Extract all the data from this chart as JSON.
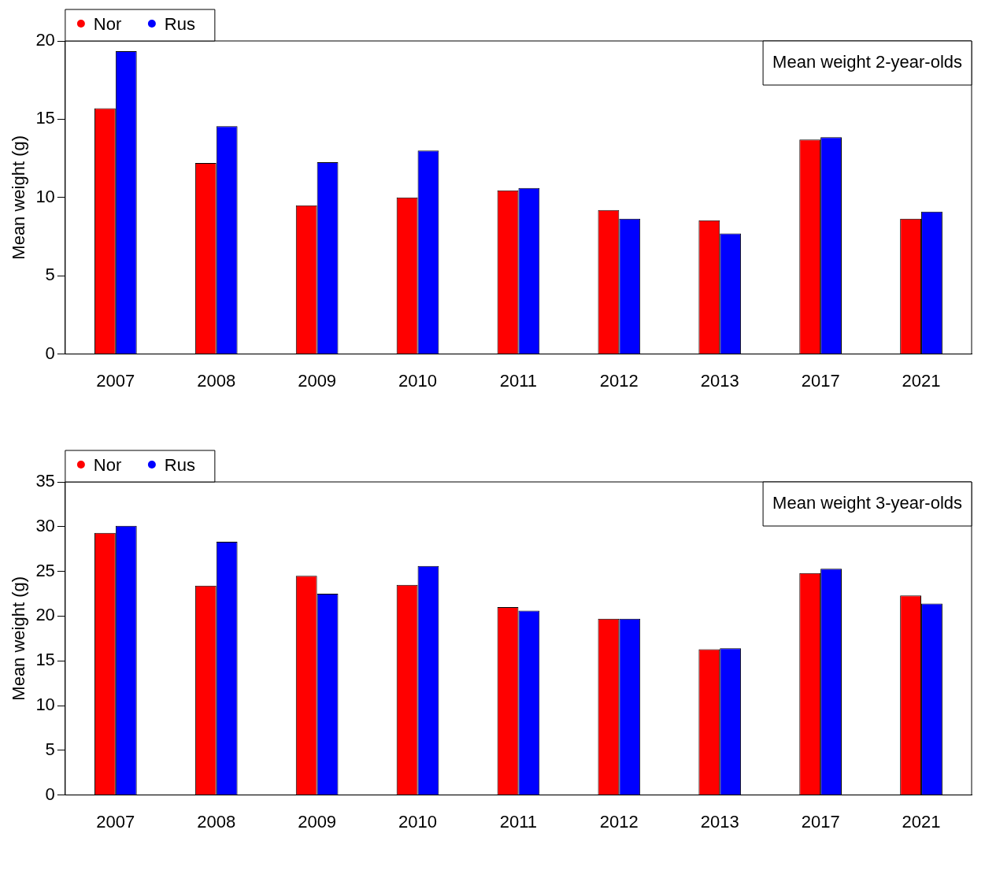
{
  "chart_data": [
    {
      "type": "bar",
      "ylabel": "Mean weight (g)",
      "annotations": [
        "Mean weight 2-year-olds"
      ],
      "categories": [
        "2007",
        "2008",
        "2009",
        "2010",
        "2011",
        "2012",
        "2013",
        "2017",
        "2021"
      ],
      "series": [
        {
          "name": "Nor",
          "color": "#ff0000",
          "values": [
            15.7,
            12.2,
            9.5,
            10.0,
            10.45,
            9.2,
            8.55,
            13.7,
            8.65
          ]
        },
        {
          "name": "Rus",
          "color": "#0000ff",
          "values": [
            19.35,
            14.55,
            12.25,
            13.0,
            10.6,
            8.65,
            7.7,
            13.85,
            9.1
          ]
        }
      ],
      "ylim": [
        0,
        20
      ],
      "yticks": [
        0,
        5,
        10,
        15,
        20
      ],
      "grid": false,
      "legend": "top left"
    },
    {
      "type": "bar",
      "ylabel": "Mean weight (g)",
      "annotations": [
        "Mean weight 3-year-olds"
      ],
      "categories": [
        "2007",
        "2008",
        "2009",
        "2010",
        "2011",
        "2012",
        "2013",
        "2017",
        "2021"
      ],
      "series": [
        {
          "name": "Nor",
          "color": "#ff0000",
          "values": [
            29.3,
            23.4,
            24.5,
            23.5,
            21.0,
            19.7,
            16.3,
            24.8,
            22.3
          ]
        },
        {
          "name": "Rus",
          "color": "#0000ff",
          "values": [
            30.1,
            28.3,
            22.5,
            25.6,
            20.6,
            19.7,
            16.4,
            25.3,
            21.4
          ]
        }
      ],
      "ylim": [
        0,
        35
      ],
      "yticks": [
        0,
        5,
        10,
        15,
        20,
        25,
        30,
        35
      ],
      "grid": false,
      "legend": "top left"
    }
  ]
}
